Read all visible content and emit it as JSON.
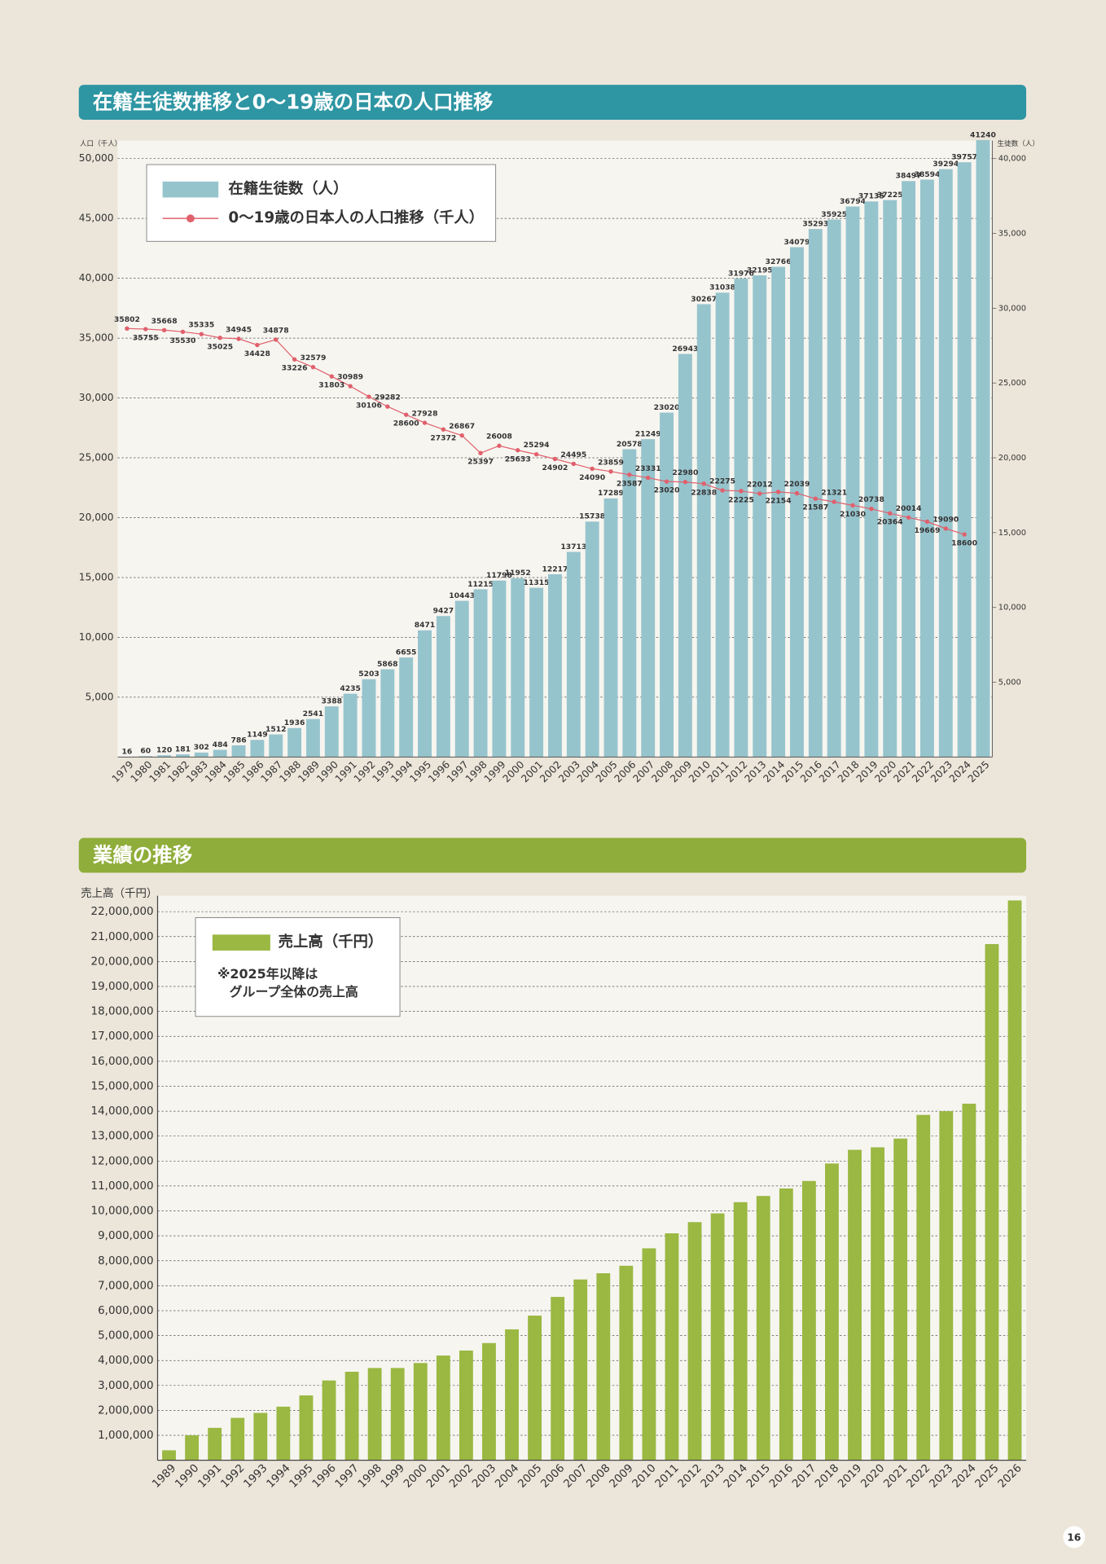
{
  "page": "16",
  "chart_data": [
    {
      "type": "combo",
      "title": "在籍生徒数推移と0〜19歳の日本の人口推移",
      "y_label": "人口（千人）",
      "y2_label": "生徒数（人）",
      "categories": [
        "1979",
        "1980",
        "1981",
        "1982",
        "1983",
        "1984",
        "1985",
        "1986",
        "1987",
        "1988",
        "1989",
        "1990",
        "1991",
        "1992",
        "1993",
        "1994",
        "1995",
        "1996",
        "1997",
        "1998",
        "1999",
        "2000",
        "2001",
        "2002",
        "2003",
        "2004",
        "2005",
        "2006",
        "2007",
        "2008",
        "2009",
        "2010",
        "2011",
        "2012",
        "2013",
        "2014",
        "2015",
        "2016",
        "2017",
        "2018",
        "2019",
        "2020",
        "2021",
        "2022",
        "2023",
        "2024",
        "2025"
      ],
      "series": [
        {
          "name": "在籍生徒数（人）",
          "type": "bar",
          "axis": "y2",
          "color": "#96c4cd",
          "values": [
            16,
            60,
            120,
            181,
            302,
            484,
            786,
            1149,
            1512,
            1936,
            2541,
            3388,
            4235,
            5203,
            5868,
            6655,
            8471,
            9427,
            10443,
            11215,
            11798,
            11952,
            11315,
            12217,
            13713,
            15738,
            17289,
            20578,
            21249,
            23020,
            26943,
            30267,
            31038,
            31976,
            32195,
            32766,
            34079,
            35293,
            35925,
            36794,
            37135,
            37225,
            38497,
            38594,
            39294,
            39757,
            41240
          ]
        },
        {
          "name": "0〜19歳の日本人の人口推移（千人）",
          "type": "line",
          "axis": "y",
          "color": "#e0606c",
          "values": [
            35802,
            35755,
            35668,
            35530,
            35335,
            35025,
            34945,
            34428,
            34878,
            33226,
            32579,
            31803,
            30989,
            30106,
            29282,
            28600,
            27928,
            27372,
            26867,
            25397,
            26008,
            25633,
            25294,
            24902,
            24495,
            24090,
            23859,
            23587,
            23331,
            23020,
            22980,
            22838,
            22275,
            22225,
            22012,
            22154,
            22039,
            21587,
            21321,
            21030,
            20738,
            20364,
            20014,
            19669,
            19090,
            18600,
            null
          ]
        }
      ],
      "ylim": [
        0,
        51500
      ],
      "yticks": [
        {
          "value": 5000,
          "label": "5,000"
        },
        {
          "value": 10000,
          "label": "10,000"
        },
        {
          "value": 15000,
          "label": "15,000"
        },
        {
          "value": 20000,
          "label": "20,000"
        },
        {
          "value": 25000,
          "label": "25,000"
        },
        {
          "value": 30000,
          "label": "30,000"
        },
        {
          "value": 35000,
          "label": "35,000"
        },
        {
          "value": 40000,
          "label": "40,000"
        },
        {
          "value": 45000,
          "label": "45,000"
        },
        {
          "value": 50000,
          "label": "50,000"
        }
      ],
      "y2lim": [
        0,
        41200
      ],
      "y2ticks": [
        {
          "value": 5000,
          "label": "5,000"
        },
        {
          "value": 10000,
          "label": "10,000"
        },
        {
          "value": 15000,
          "label": "15,000"
        },
        {
          "value": 20000,
          "label": "20,000"
        },
        {
          "value": 25000,
          "label": "25,000"
        },
        {
          "value": 30000,
          "label": "30,000"
        },
        {
          "value": 35000,
          "label": "35,000"
        },
        {
          "value": 40000,
          "label": "40,000"
        }
      ],
      "grid": true,
      "legend": "upper left",
      "header_color": "#2e95a3"
    },
    {
      "type": "bar",
      "title": "業績の推移",
      "y_label": "売上高（千円）",
      "note": [
        "※2025年以降は",
        "グループ全体の売上高"
      ],
      "categories": [
        "1989",
        "1990",
        "1991",
        "1992",
        "1993",
        "1994",
        "1995",
        "1996",
        "1997",
        "1998",
        "1999",
        "2000",
        "2001",
        "2002",
        "2003",
        "2004",
        "2005",
        "2006",
        "2007",
        "2008",
        "2009",
        "2010",
        "2011",
        "2012",
        "2013",
        "2014",
        "2015",
        "2016",
        "2017",
        "2018",
        "2019",
        "2020",
        "2021",
        "2022",
        "2023",
        "2024",
        "2025",
        "2026"
      ],
      "series": [
        {
          "name": "売上高（千円）",
          "color": "#9ab842",
          "values": [
            400000,
            1000000,
            1300000,
            1700000,
            1900000,
            2150000,
            2600000,
            3200000,
            3550000,
            3700000,
            3700000,
            3900000,
            4200000,
            4400000,
            4700000,
            5250000,
            5800000,
            6550000,
            7250000,
            7500000,
            7800000,
            8500000,
            9100000,
            9550000,
            9900000,
            10350000,
            10600000,
            10900000,
            11200000,
            11900000,
            12450000,
            12550000,
            12900000,
            13850000,
            14000000,
            14300000,
            20700000,
            22450000
          ]
        }
      ],
      "ylim": [
        0,
        22640000
      ],
      "yticks": [
        {
          "value": 1000000,
          "label": "1,000,000"
        },
        {
          "value": 2000000,
          "label": "2,000,000"
        },
        {
          "value": 3000000,
          "label": "3,000,000"
        },
        {
          "value": 4000000,
          "label": "4,000,000"
        },
        {
          "value": 5000000,
          "label": "5,000,000"
        },
        {
          "value": 6000000,
          "label": "6,000,000"
        },
        {
          "value": 7000000,
          "label": "7,000,000"
        },
        {
          "value": 8000000,
          "label": "8,000,000"
        },
        {
          "value": 9000000,
          "label": "9,000,000"
        },
        {
          "value": 10000000,
          "label": "10,000,000"
        },
        {
          "value": 11000000,
          "label": "11,000,000"
        },
        {
          "value": 12000000,
          "label": "12,000,000"
        },
        {
          "value": 13000000,
          "label": "13,000,000"
        },
        {
          "value": 14000000,
          "label": "14,000,000"
        },
        {
          "value": 15000000,
          "label": "15,000,000"
        },
        {
          "value": 16000000,
          "label": "16,000,000"
        },
        {
          "value": 17000000,
          "label": "17,000,000"
        },
        {
          "value": 18000000,
          "label": "18,000,000"
        },
        {
          "value": 19000000,
          "label": "19,000,000"
        },
        {
          "value": 20000000,
          "label": "20,000,000"
        },
        {
          "value": 21000000,
          "label": "21,000,000"
        },
        {
          "value": 22000000,
          "label": "22,000,000"
        }
      ],
      "grid": true,
      "legend": "upper left",
      "header_color": "#8fad3a"
    }
  ]
}
